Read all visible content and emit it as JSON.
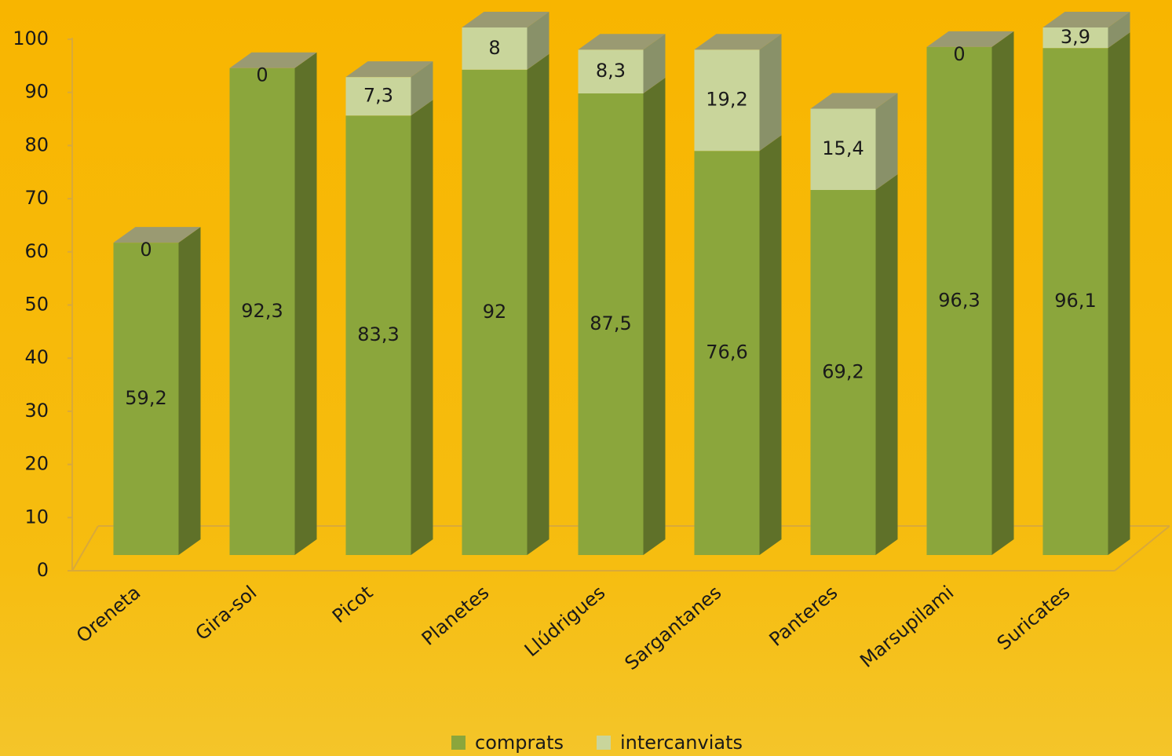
{
  "chart_data": {
    "type": "bar3d_stacked",
    "categories": [
      "Oreneta",
      "Gira-sol",
      "Picot",
      "Planetes",
      "Llúdrigues",
      "Sargantanes",
      "Panteres",
      "Marsupilami",
      "Suricates"
    ],
    "series": [
      {
        "name": "comprats",
        "color": "#8ba63c",
        "values": [
          59.2,
          92.3,
          83.3,
          92,
          87.5,
          76.6,
          69.2,
          96.3,
          96.1
        ],
        "value_labels": [
          "59,2",
          "92,3",
          "83,3",
          "92",
          "87,5",
          "76,6",
          "69,2",
          "96,3",
          "96,1"
        ]
      },
      {
        "name": "intercanviats",
        "color": "#c9d59b",
        "values": [
          0,
          0,
          7.3,
          8,
          8.3,
          19.2,
          15.4,
          0,
          3.9
        ],
        "value_labels": [
          "0",
          "0",
          "7,3",
          "8",
          "8,3",
          "19,2",
          "15,4",
          "0",
          "3,9"
        ]
      }
    ],
    "ylim": [
      0,
      100
    ],
    "yticks": [
      0,
      10,
      20,
      30,
      40,
      50,
      60,
      70,
      80,
      90,
      100
    ],
    "legend": "bottom"
  }
}
